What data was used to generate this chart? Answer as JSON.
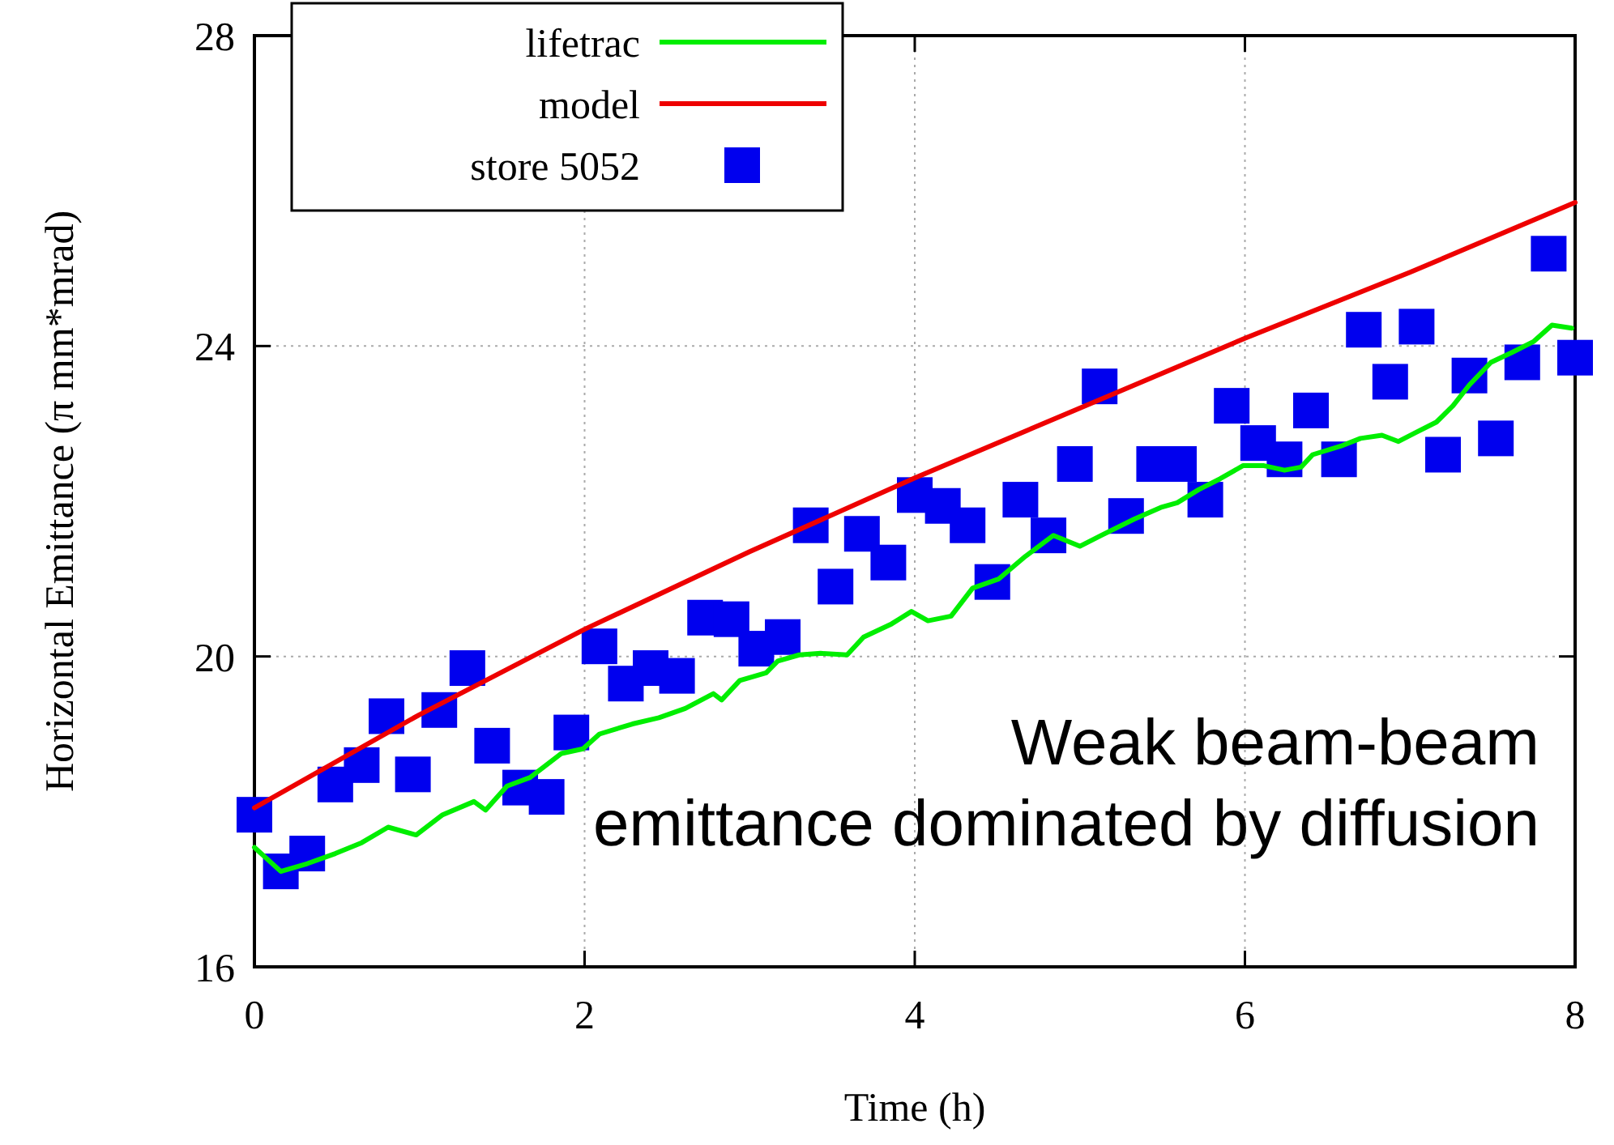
{
  "chart_data": {
    "type": "line",
    "xlabel": "Time (h)",
    "ylabel": "Horizontal Emittance (π mm*mrad)",
    "xlim": [
      0,
      8
    ],
    "xticks": [
      0,
      2,
      4,
      6,
      8
    ],
    "ylim": [
      16,
      28
    ],
    "yticks": [
      16,
      20,
      24,
      28
    ],
    "grid": true,
    "legend": "top left",
    "line_style": "solid",
    "annotations": [
      "Weak beam-beam",
      "emittance dominated by diffusion"
    ],
    "series": [
      {
        "name": "lifetrac",
        "type": "line",
        "color": "#00ee00",
        "x": [
          0,
          0.16,
          0.32,
          0.49,
          0.65,
          0.81,
          0.98,
          1.14,
          1.33,
          1.4,
          1.53,
          1.67,
          1.86,
          1.99,
          2.09,
          2.29,
          2.45,
          2.61,
          2.78,
          2.83,
          2.94,
          3.1,
          3.17,
          3.3,
          3.43,
          3.59,
          3.69,
          3.86,
          3.98,
          4.08,
          4.22,
          4.35,
          4.51,
          4.67,
          4.84,
          5,
          5.13,
          5.33,
          5.49,
          5.59,
          5.72,
          5.85,
          5.99,
          6.11,
          6.24,
          6.34,
          6.41,
          6.58,
          6.7,
          6.83,
          6.93,
          7.03,
          7.16,
          7.26,
          7.36,
          7.49,
          7.62,
          7.75,
          7.86,
          7.98
        ],
        "values": [
          17.54,
          17.23,
          17.33,
          17.46,
          17.6,
          17.8,
          17.7,
          17.96,
          18.13,
          18.02,
          18.33,
          18.44,
          18.75,
          18.81,
          19,
          19.13,
          19.21,
          19.33,
          19.52,
          19.44,
          19.69,
          19.79,
          19.94,
          20.02,
          20.04,
          20.02,
          20.25,
          20.42,
          20.58,
          20.46,
          20.52,
          20.88,
          21,
          21.29,
          21.56,
          21.42,
          21.56,
          21.77,
          21.92,
          21.98,
          22.15,
          22.29,
          22.46,
          22.46,
          22.4,
          22.44,
          22.6,
          22.71,
          22.81,
          22.85,
          22.77,
          22.88,
          23.02,
          23.23,
          23.5,
          23.79,
          23.92,
          24.06,
          24.27,
          24.23
        ]
      },
      {
        "name": "model",
        "type": "line",
        "color": "#ee0000",
        "x": [
          0,
          1,
          2,
          3,
          4,
          5,
          6,
          7,
          8
        ],
        "values": [
          18.05,
          19.25,
          20.35,
          21.35,
          22.3,
          23.2,
          24.1,
          24.95,
          25.85
        ]
      },
      {
        "name": "store 5052",
        "type": "scatter",
        "marker": "square",
        "color": "#0000ee",
        "x": [
          0,
          0.16,
          0.32,
          0.49,
          0.65,
          0.8,
          0.96,
          1.12,
          1.29,
          1.44,
          1.61,
          1.77,
          1.92,
          2.09,
          2.25,
          2.4,
          2.56,
          2.73,
          2.89,
          3.04,
          3.2,
          3.37,
          3.52,
          3.68,
          3.84,
          4,
          4.17,
          4.32,
          4.47,
          4.64,
          4.81,
          4.97,
          5.12,
          5.28,
          5.45,
          5.6,
          5.76,
          5.92,
          6.08,
          6.24,
          6.4,
          6.57,
          6.72,
          6.88,
          7.04,
          7.2,
          7.36,
          7.52,
          7.68,
          7.84,
          8
        ],
        "values": [
          17.96,
          17.23,
          17.46,
          18.35,
          18.6,
          19.23,
          18.48,
          19.31,
          19.85,
          18.85,
          18.31,
          18.19,
          19.02,
          20.13,
          19.65,
          19.85,
          19.75,
          20.5,
          20.48,
          20.1,
          20.25,
          21.69,
          20.9,
          21.58,
          21.21,
          22.08,
          21.94,
          21.69,
          20.96,
          22.02,
          21.56,
          22.48,
          23.48,
          21.81,
          22.48,
          22.48,
          22.02,
          23.23,
          22.75,
          22.54,
          23.17,
          22.54,
          24.21,
          23.54,
          24.25,
          22.6,
          23.62,
          22.81,
          23.79,
          25.19,
          23.85
        ]
      }
    ]
  }
}
